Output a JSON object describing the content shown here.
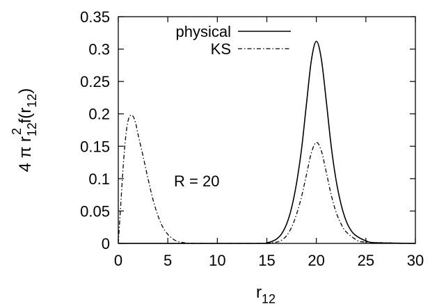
{
  "chart_data": {
    "type": "line",
    "title": "",
    "xlabel": "r12",
    "ylabel": "4 π r12² f(r12)",
    "xlabel_parts": {
      "base": "r",
      "sub": "12"
    },
    "ylabel_parts": {
      "prefix": "4 π r",
      "sub": "12",
      "sup": "2",
      "suffix": " f(r",
      "sub2": "12",
      "close": ")"
    },
    "xlim": [
      0,
      30
    ],
    "ylim": [
      0,
      0.35
    ],
    "xticks": [
      0,
      5,
      10,
      15,
      20,
      25,
      30
    ],
    "yticks": [
      0,
      0.05,
      0.1,
      0.15,
      0.2,
      0.25,
      0.3,
      0.35
    ],
    "xtick_labels": [
      "0",
      "5",
      "10",
      "15",
      "20",
      "25",
      "30"
    ],
    "ytick_labels": [
      "0",
      "0.05",
      "0.1",
      "0.15",
      "0.2",
      "0.25",
      "0.3",
      "0.35"
    ],
    "grid": false,
    "legend_position": "top-right",
    "annotation": "R = 20",
    "series": [
      {
        "name": "physical",
        "style": "solid",
        "color": "#000000",
        "x": [
          0,
          14,
          15,
          15.5,
          16,
          16.5,
          17,
          17.5,
          18,
          18.5,
          19,
          19.5,
          20,
          20.5,
          21,
          21.5,
          22,
          22.5,
          23,
          23.5,
          24,
          25,
          26,
          30
        ],
        "y": [
          0,
          0.0,
          0.001,
          0.003,
          0.007,
          0.015,
          0.03,
          0.055,
          0.093,
          0.145,
          0.215,
          0.283,
          0.312,
          0.285,
          0.22,
          0.15,
          0.097,
          0.06,
          0.035,
          0.02,
          0.012,
          0.004,
          0.001,
          0
        ]
      },
      {
        "name": "KS",
        "style": "dash-dot",
        "color": "#000000",
        "x": [
          0,
          0.25,
          0.5,
          0.75,
          1,
          1.25,
          1.5,
          1.75,
          2,
          2.5,
          3,
          3.5,
          4,
          4.5,
          5,
          5.5,
          6,
          6.5,
          7,
          8,
          10,
          14,
          15,
          16,
          16.5,
          17,
          17.5,
          18,
          18.5,
          19,
          19.5,
          20,
          20.5,
          21,
          21.5,
          22,
          22.5,
          23,
          24,
          25,
          30
        ],
        "y": [
          0,
          0.06,
          0.12,
          0.165,
          0.19,
          0.198,
          0.196,
          0.186,
          0.168,
          0.135,
          0.1,
          0.068,
          0.043,
          0.025,
          0.014,
          0.007,
          0.003,
          0.0015,
          0.0005,
          0.0001,
          0,
          0,
          0.0005,
          0.002,
          0.005,
          0.012,
          0.025,
          0.045,
          0.072,
          0.106,
          0.14,
          0.156,
          0.143,
          0.11,
          0.075,
          0.048,
          0.03,
          0.018,
          0.006,
          0.002,
          0
        ]
      }
    ]
  }
}
